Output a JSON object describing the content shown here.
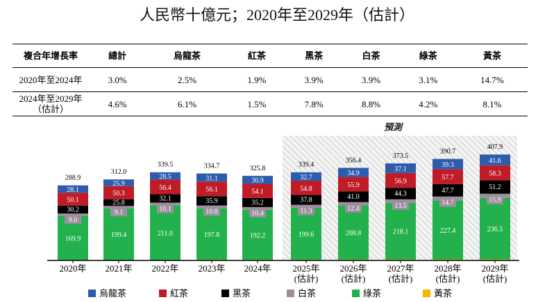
{
  "title": "人民幣十億元；2020年至2029年（估計）",
  "cagr_table": {
    "headers": [
      "複合年增長率",
      "總計",
      "烏龍茶",
      "紅茶",
      "黑茶",
      "白茶",
      "綠茶",
      "黃茶"
    ],
    "rows": [
      [
        "2020年至2024年",
        "3.0%",
        "2.5%",
        "1.9%",
        "3.9%",
        "3.9%",
        "3.1%",
        "14.7%"
      ],
      [
        "2024年至2029年\n（估計）",
        "4.6%",
        "6.1%",
        "1.5%",
        "7.8%",
        "8.8%",
        "4.2%",
        "8.1%"
      ]
    ]
  },
  "chart_data": {
    "type": "bar",
    "stacked": true,
    "forecast_label": "預測",
    "categories": [
      "2020年",
      "2021年",
      "2022年",
      "2023年",
      "2024年",
      "2025年\n(估計)",
      "2026年\n(估計)",
      "2027年\n(估計)",
      "2028年\n(估計)",
      "2029年\n(估計)"
    ],
    "totals": [
      288.9,
      312.0,
      339.5,
      334.7,
      325.8,
      339.4,
      356.4,
      373.5,
      390.7,
      407.9
    ],
    "series": [
      {
        "name": "黃茶",
        "color": "#f5b800",
        "values": [
          1.7,
          1.4,
          1.4,
          3.0,
          2.9,
          3.2,
          3.4,
          3.7,
          4.0,
          4.3
        ]
      },
      {
        "name": "綠茶",
        "color": "#22b14c",
        "values": [
          169.9,
          199.4,
          211.0,
          197.8,
          192.2,
          199.6,
          208.8,
          218.1,
          227.4,
          236.5
        ]
      },
      {
        "name": "白茶",
        "color": "#9d8f9d",
        "values": [
          9.0,
          9.1,
          10.1,
          10.8,
          10.4,
          11.3,
          12.4,
          13.5,
          14.7,
          15.9
        ]
      },
      {
        "name": "黑茶",
        "color": "#000000",
        "values": [
          30.2,
          25.8,
          32.1,
          35.9,
          35.2,
          37.8,
          41.0,
          44.3,
          47.7,
          51.2
        ]
      },
      {
        "name": "紅茶",
        "color": "#c01c28",
        "values": [
          50.1,
          50.3,
          56.4,
          56.1,
          54.1,
          54.8,
          55.9,
          56.9,
          57.7,
          58.3
        ]
      },
      {
        "name": "烏龍茶",
        "color": "#2e5cad",
        "values": [
          28.1,
          25.9,
          28.5,
          31.1,
          30.9,
          32.7,
          34.9,
          37.1,
          39.3,
          41.6
        ]
      }
    ],
    "legend_order": [
      "烏龍茶",
      "紅茶",
      "黑茶",
      "白茶",
      "綠茶",
      "黃茶"
    ],
    "legend_position": "bottom"
  }
}
